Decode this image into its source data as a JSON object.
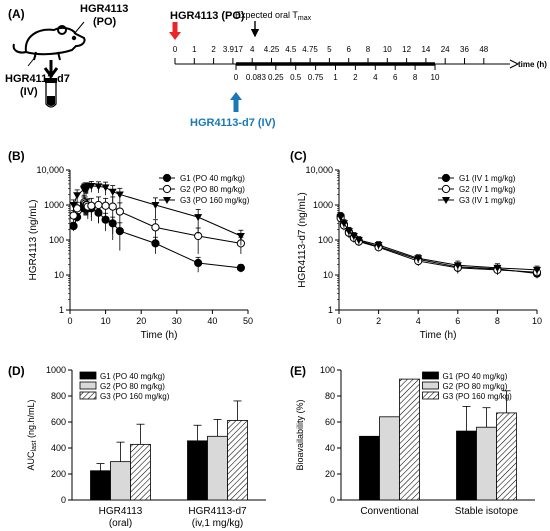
{
  "panels": {
    "a": {
      "label": "(A)",
      "mouse_top_label": [
        "HGR4113",
        "(PO)"
      ],
      "mouse_side_label": [
        "HGR4113-d7",
        "(IV)"
      ],
      "po_label": "HGR4113 (PO)",
      "iv_label": "HGR4113-d7 (IV)",
      "tmax_label": "Expected oral T",
      "tmax_sub": "max",
      "time_unit": "time (h)",
      "top_ticks": [
        "0",
        "1",
        "2",
        "3.917",
        "4",
        "4.25",
        "4.5",
        "4.75",
        "5",
        "6",
        "8",
        "10",
        "12",
        "14",
        "24",
        "36",
        "48"
      ],
      "bottom_ticks": [
        "0",
        "0.083",
        "0.25",
        "0.5",
        "0.75",
        "1",
        "2",
        "4",
        "6",
        "8",
        "10"
      ],
      "po_color": "#e8262a",
      "iv_color": "#1a78b8"
    },
    "b": {
      "label": "(B)"
    },
    "c": {
      "label": "(C)"
    },
    "d": {
      "label": "(D)"
    },
    "e": {
      "label": "(E)"
    }
  },
  "chart_data": [
    {
      "id": "B",
      "type": "line",
      "ylog": true,
      "xlabel": "Time (h)",
      "ylabel": "HGR4113 (ng/mL)",
      "xlim": [
        0,
        50
      ],
      "xticks": [
        0,
        10,
        20,
        30,
        40,
        50
      ],
      "ylim": [
        1,
        10000
      ],
      "yticks": [
        1,
        10,
        100,
        1000,
        10000
      ],
      "yticklabels": [
        "1",
        "10",
        "100",
        "1000",
        "10,000"
      ],
      "legend_position": "top-right",
      "x": [
        1,
        2,
        3.917,
        4,
        4.25,
        4.5,
        4.75,
        5,
        6,
        8,
        10,
        12,
        14,
        24,
        36,
        48
      ],
      "series": [
        {
          "name": "G1 (PO 40 mg/kg)",
          "marker": "filled-circle",
          "values": [
            250,
            450,
            800,
            1000,
            950,
            900,
            850,
            800,
            800,
            600,
            380,
            300,
            180,
            80,
            22,
            16
          ],
          "err": [
            70,
            120,
            300,
            400,
            350,
            300,
            300,
            300,
            350,
            300,
            200,
            150,
            130,
            40,
            10,
            4
          ]
        },
        {
          "name": "G2 (PO 80 mg/kg)",
          "marker": "open-circle",
          "values": [
            500,
            800,
            1100,
            1200,
            1100,
            1000,
            1000,
            900,
            950,
            1000,
            950,
            900,
            650,
            230,
            130,
            80
          ],
          "err": [
            200,
            400,
            600,
            700,
            600,
            500,
            500,
            500,
            600,
            700,
            600,
            800,
            500,
            150,
            90,
            40
          ]
        },
        {
          "name": "G3 (PO 160 mg/kg)",
          "marker": "filled-triangle",
          "values": [
            1000,
            1900,
            2800,
            3000,
            3200,
            3000,
            3100,
            3200,
            3500,
            3400,
            3200,
            2400,
            2000,
            1000,
            450,
            130
          ],
          "err": [
            400,
            800,
            1200,
            1000,
            1100,
            1000,
            1000,
            1100,
            1200,
            1200,
            1300,
            1200,
            1000,
            600,
            300,
            60
          ]
        }
      ]
    },
    {
      "id": "C",
      "type": "line",
      "ylog": true,
      "xlabel": "Time (h)",
      "ylabel": "HGR4113-d7 (ng/mL)",
      "xlim": [
        0,
        10
      ],
      "xticks": [
        0,
        2,
        4,
        6,
        8,
        10
      ],
      "ylim": [
        1,
        10000
      ],
      "yticks": [
        1,
        10,
        100,
        1000,
        10000
      ],
      "yticklabels": [
        "1",
        "10",
        "100",
        "1000",
        "10,000"
      ],
      "legend_position": "top-right",
      "x": [
        0.083,
        0.25,
        0.5,
        0.75,
        1,
        2,
        4,
        6,
        8,
        10
      ],
      "series": [
        {
          "name": "G1 (IV 1 mg/kg)",
          "marker": "filled-circle",
          "values": [
            480,
            280,
            170,
            120,
            95,
            65,
            28,
            17,
            15,
            11
          ],
          "err": [
            120,
            80,
            50,
            35,
            25,
            18,
            8,
            5,
            4,
            3
          ]
        },
        {
          "name": "G2 (IV 1 mg/kg)",
          "marker": "open-circle",
          "values": [
            420,
            260,
            160,
            115,
            90,
            62,
            25,
            16,
            14,
            12
          ],
          "err": [
            100,
            70,
            45,
            30,
            22,
            15,
            7,
            5,
            4,
            3
          ]
        },
        {
          "name": "G3 (IV 1 mg/kg)",
          "marker": "filled-triangle",
          "values": [
            450,
            300,
            180,
            130,
            100,
            72,
            30,
            19,
            16,
            14
          ],
          "err": [
            110,
            80,
            50,
            35,
            25,
            18,
            8,
            6,
            5,
            4
          ]
        }
      ]
    },
    {
      "id": "D",
      "type": "bar",
      "ylabel": "AUC",
      "ylabel_sub": "last",
      "ylabel_unit": " (ng.h/mL)",
      "categories": [
        [
          "HGR4113",
          "(oral)"
        ],
        [
          "HGR4113-d7",
          "(iv,1 mg/kg)"
        ]
      ],
      "ylim": [
        0,
        1000
      ],
      "yticks": [
        0,
        200,
        400,
        600,
        800,
        1000
      ],
      "legend_position": "top-left",
      "series": [
        {
          "name": "G1 (PO 40 mg/kg)",
          "fill": "solid-black",
          "values": [
            225,
            455
          ],
          "err": [
            55,
            120
          ]
        },
        {
          "name": "G2 (PO 80 mg/kg)",
          "fill": "light-gray",
          "values": [
            295,
            490
          ],
          "err": [
            150,
            130
          ]
        },
        {
          "name": "G3 (PO 160 mg/kg)",
          "fill": "hatched",
          "values": [
            428,
            612
          ],
          "err": [
            155,
            150
          ]
        }
      ]
    },
    {
      "id": "E",
      "type": "bar",
      "ylabel": "Bioavailability (%)",
      "categories": [
        [
          "Conventional"
        ],
        [
          "Stable isotope"
        ]
      ],
      "ylim": [
        0,
        100
      ],
      "yticks": [
        0,
        20,
        40,
        60,
        80,
        100
      ],
      "legend_position": "top-right",
      "series": [
        {
          "name": "G1 (PO 40 mg/kg)",
          "fill": "solid-black",
          "values": [
            49,
            53
          ],
          "err": [
            0,
            19
          ]
        },
        {
          "name": "G2 (PO 80 mg/kg)",
          "fill": "light-gray",
          "values": [
            64,
            56
          ],
          "err": [
            0,
            15
          ]
        },
        {
          "name": "G3 (PO 160 mg/kg)",
          "fill": "hatched",
          "values": [
            93,
            67
          ],
          "err": [
            0,
            17
          ]
        }
      ]
    }
  ]
}
